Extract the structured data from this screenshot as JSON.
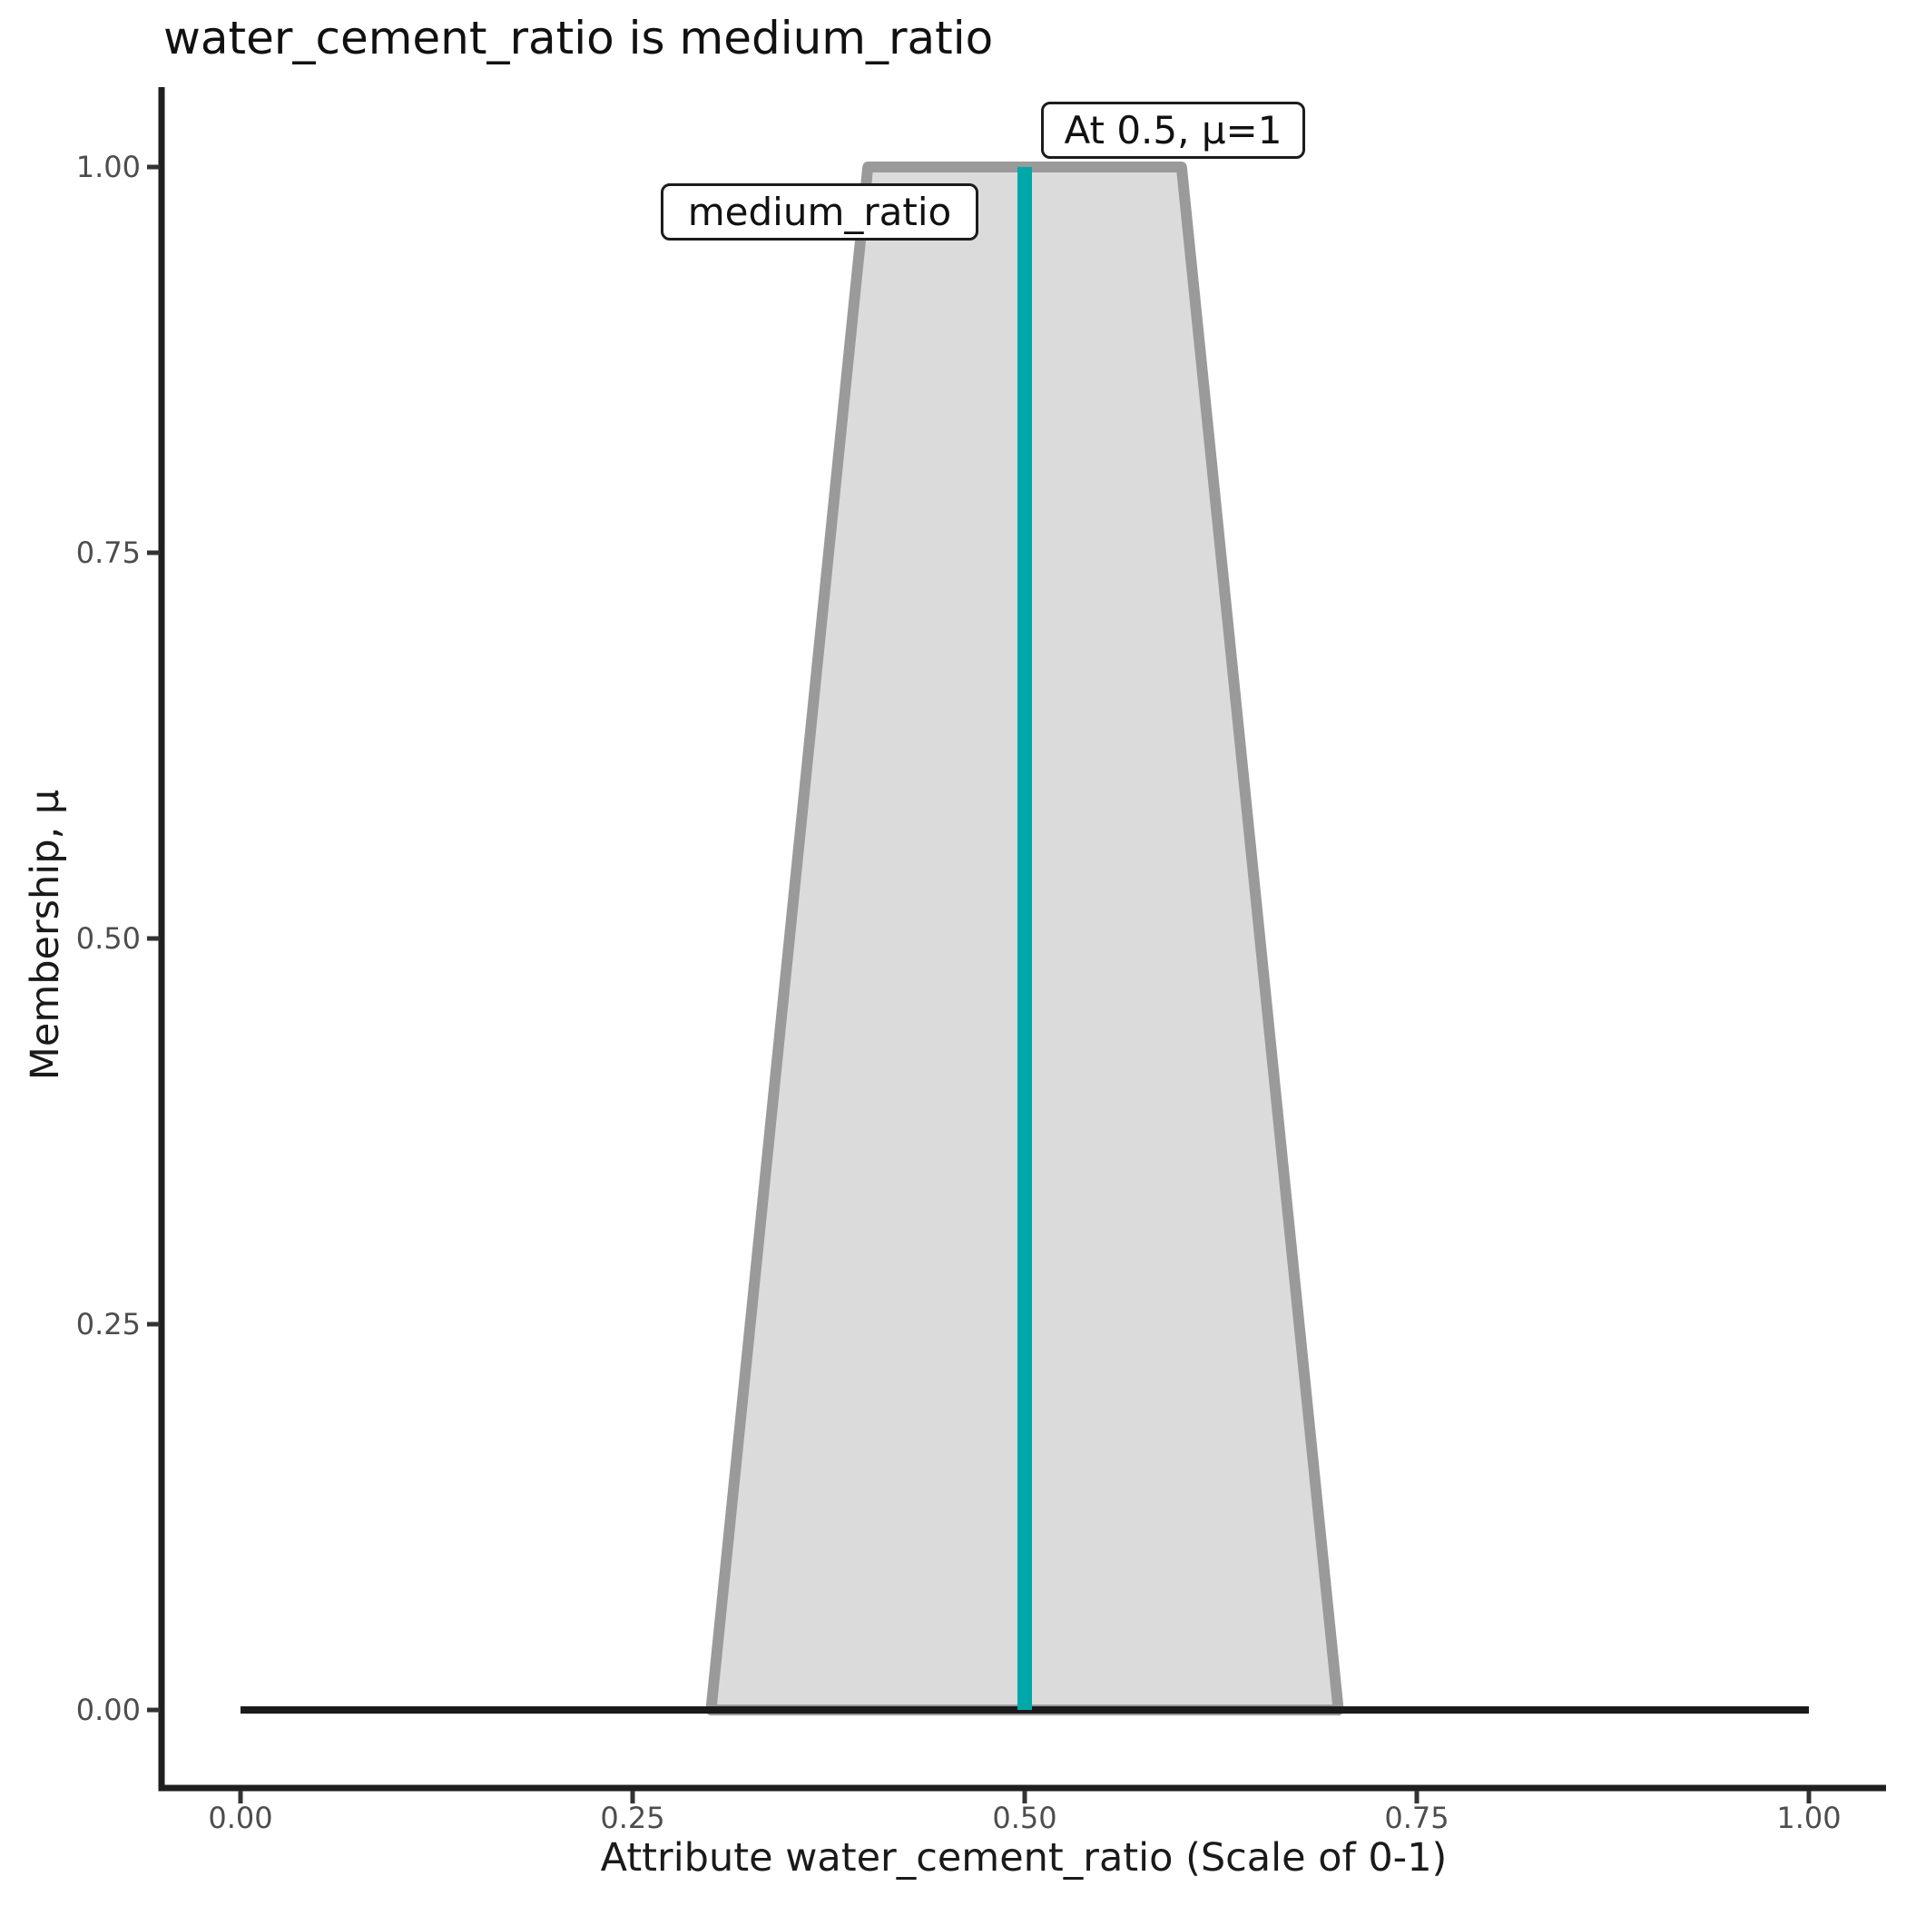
{
  "chart_data": {
    "type": "area",
    "title": "water_cement_ratio is medium_ratio",
    "xlabel": "Attribute water_cement_ratio (Scale of 0-1)",
    "ylabel": "Membership, μ",
    "xlim": [
      0,
      1
    ],
    "ylim": [
      0,
      1
    ],
    "grid": false,
    "legend": false,
    "x_tick_values": [
      0,
      0.25,
      0.5,
      0.75,
      1
    ],
    "x_tick_labels": [
      "0.00",
      "0.25",
      "0.50",
      "0.75",
      "1.00"
    ],
    "y_tick_values": [
      0,
      0.25,
      0.5,
      0.75,
      1
    ],
    "y_tick_labels": [
      "0.00",
      "0.25",
      "0.50",
      "0.75",
      "1.00"
    ],
    "series": [
      {
        "name": "medium_ratio",
        "type": "membership-trapezoid",
        "points_xy": [
          [
            0.3,
            0
          ],
          [
            0.4,
            1
          ],
          [
            0.6,
            1
          ],
          [
            0.7,
            0
          ]
        ],
        "fill_color": "#DBDBDB",
        "line_color": "#9A9A9A"
      },
      {
        "name": "membership-baseline",
        "type": "line",
        "points_xy": [
          [
            0,
            0
          ],
          [
            1,
            0
          ]
        ],
        "line_color": "#1A1A1A"
      },
      {
        "name": "crisp-input-marker",
        "type": "vline",
        "x": 0.5,
        "y_from": 0,
        "y_to": 1,
        "line_color": "#00A8AA"
      }
    ],
    "annotations": [
      {
        "text": "medium_ratio",
        "x": 0.37,
        "mu": 0.97
      },
      {
        "text": "At 0.5, μ=1",
        "x": 0.59,
        "mu": 1.02
      }
    ],
    "colors": {
      "membership_fill": "#DBDBDB",
      "membership_border": "#9A9A9A",
      "marker_line": "#00A8AA",
      "axis_line": "#1F1F1F",
      "tick_label": "#4D4D4D",
      "text": "#111111",
      "background": "#FFFFFF"
    }
  }
}
